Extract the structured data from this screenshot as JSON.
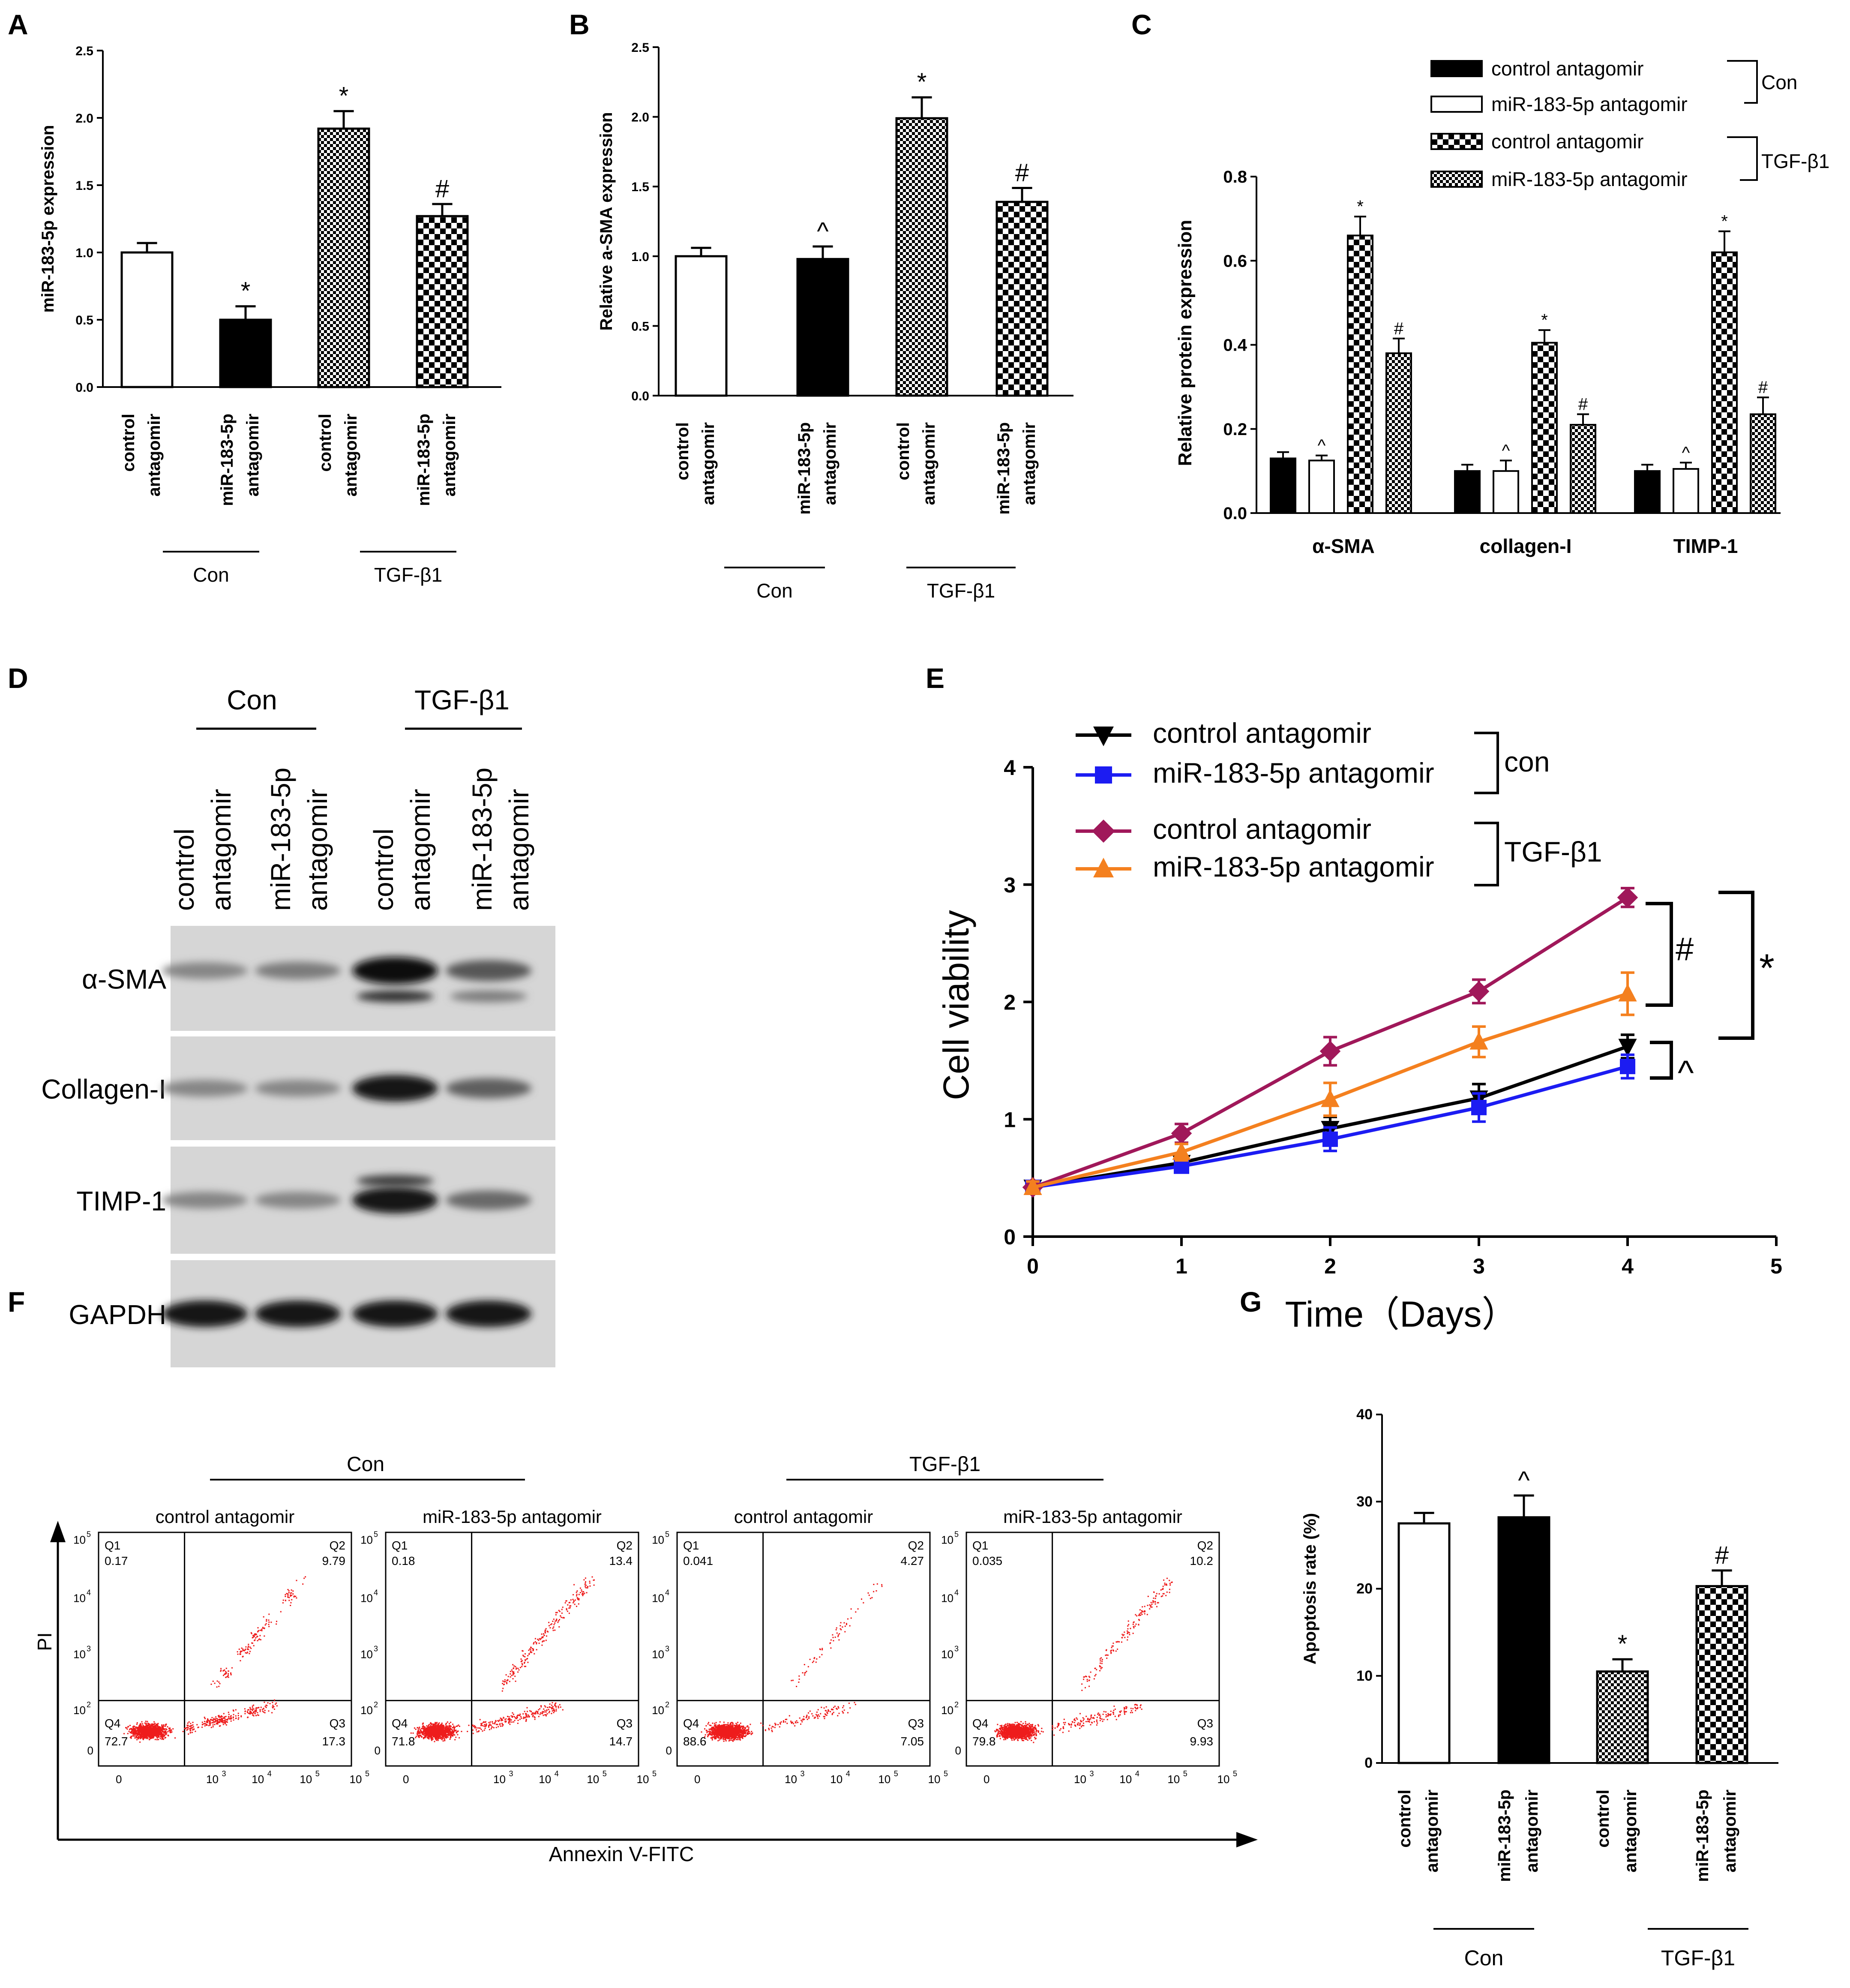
{
  "figure": {
    "panel_letters": {
      "A": "A",
      "B": "B",
      "C": "C",
      "D": "D",
      "E": "E",
      "F": "F",
      "G": "G"
    },
    "group_labels": {
      "con": "Con",
      "tgf": "TGF-β1",
      "con_lower": "con"
    },
    "bar_labels": {
      "ctrl_1": "control",
      "ctrl_2": "antagomir",
      "mir_1": "miR-183-5p",
      "mir_2": "antagomir"
    },
    "colors": {
      "black": "#000000",
      "white": "#ffffff",
      "blue": "#1c1cf2",
      "purple": "#a0185a",
      "orange": "#f4801f",
      "red": "#ee1c1c"
    }
  },
  "chart_data": [
    {
      "panel": "A",
      "type": "bar",
      "ylabel": "miR-183-5p expression",
      "ylim": [
        0,
        2.5
      ],
      "yticks": [
        "0.0",
        "0.5",
        "1.0",
        "1.5",
        "2.0",
        "2.5"
      ],
      "values": [
        1.0,
        0.5,
        1.92,
        1.27
      ],
      "errors": [
        0.07,
        0.1,
        0.13,
        0.09
      ],
      "annotations": [
        "",
        "*",
        "*",
        "#"
      ],
      "fills": [
        "white",
        "black",
        "dense-check",
        "coarse-check"
      ]
    },
    {
      "panel": "B",
      "type": "bar",
      "ylabel": "Relative a-SMA expression",
      "ylim": [
        0,
        2.5
      ],
      "yticks": [
        "0.0",
        "0.5",
        "1.0",
        "1.5",
        "2.0",
        "2.5"
      ],
      "values": [
        1.0,
        0.98,
        1.99,
        1.39
      ],
      "errors": [
        0.06,
        0.09,
        0.15,
        0.1
      ],
      "annotations": [
        "",
        "^",
        "*",
        "#"
      ],
      "fills": [
        "white",
        "black",
        "dense-check",
        "coarse-check"
      ]
    },
    {
      "panel": "C",
      "type": "bar",
      "ylabel": "Relative protein expression",
      "ylim": [
        0,
        0.8
      ],
      "yticks": [
        "0.0",
        "0.2",
        "0.4",
        "0.6",
        "0.8"
      ],
      "categories": [
        "α-SMA",
        "collagen-I",
        "TIMP-1"
      ],
      "series": [
        {
          "name": "control antagomir",
          "group": "Con",
          "fill": "black",
          "values": [
            0.13,
            0.1,
            0.1
          ],
          "errors": [
            0.015,
            0.015,
            0.015
          ],
          "annotations": [
            "",
            "",
            ""
          ]
        },
        {
          "name": "miR-183-5p antagomir",
          "group": "Con",
          "fill": "white",
          "values": [
            0.125,
            0.1,
            0.105
          ],
          "errors": [
            0.012,
            0.025,
            0.015
          ],
          "annotations": [
            "^",
            "^",
            "^"
          ]
        },
        {
          "name": "control antagomir",
          "group": "TGF-β1",
          "fill": "coarse-check",
          "values": [
            0.66,
            0.405,
            0.62
          ],
          "errors": [
            0.045,
            0.03,
            0.05
          ],
          "annotations": [
            "*",
            "*",
            "*"
          ]
        },
        {
          "name": "miR-183-5p antagomir",
          "group": "TGF-β1",
          "fill": "dense-check",
          "values": [
            0.38,
            0.21,
            0.235
          ],
          "errors": [
            0.035,
            0.025,
            0.04
          ],
          "annotations": [
            "#",
            "#",
            "#"
          ]
        }
      ],
      "legend_groups": [
        "Con",
        "TGF-β1"
      ]
    },
    {
      "panel": "D",
      "type": "table",
      "rows": [
        "α-SMA",
        "Collagen-I",
        "TIMP-1",
        "GAPDH"
      ],
      "lanes": [
        "control antagomir (Con)",
        "miR-183-5p antagomir (Con)",
        "control antagomir (TGF-β1)",
        "miR-183-5p antagomir (TGF-β1)"
      ],
      "band_intensity": [
        [
          0.35,
          0.4,
          1.0,
          0.6
        ],
        [
          0.35,
          0.35,
          0.95,
          0.55
        ],
        [
          0.35,
          0.35,
          0.95,
          0.5
        ],
        [
          0.95,
          0.95,
          0.95,
          0.95
        ]
      ]
    },
    {
      "panel": "E",
      "type": "line",
      "xlabel": "Time（Days）",
      "ylabel": "Cell viability",
      "xlim": [
        0,
        5
      ],
      "ylim": [
        0,
        4
      ],
      "xticks": [
        "0",
        "1",
        "2",
        "3",
        "4",
        "5"
      ],
      "yticks": [
        "0",
        "1",
        "2",
        "3",
        "4"
      ],
      "x": [
        0,
        1,
        2,
        3,
        4
      ],
      "series": [
        {
          "name": "control antagomir",
          "group": "con",
          "color": "black",
          "marker": "triangle-down",
          "values": [
            0.42,
            0.63,
            0.92,
            1.18,
            1.62
          ],
          "errors": [
            0.05,
            0.05,
            0.1,
            0.12,
            0.1
          ]
        },
        {
          "name": "miR-183-5p antagomir",
          "group": "con",
          "color": "blue",
          "marker": "square",
          "values": [
            0.42,
            0.6,
            0.83,
            1.1,
            1.45
          ],
          "errors": [
            0.05,
            0.05,
            0.1,
            0.12,
            0.1
          ]
        },
        {
          "name": "control antagomir",
          "group": "TGF-β1",
          "color": "purple",
          "marker": "diamond",
          "values": [
            0.42,
            0.88,
            1.58,
            2.09,
            2.89
          ],
          "errors": [
            0.05,
            0.08,
            0.12,
            0.1,
            0.08
          ]
        },
        {
          "name": "miR-183-5p antagomir",
          "group": "TGF-β1",
          "color": "orange",
          "marker": "triangle-up",
          "values": [
            0.42,
            0.72,
            1.17,
            1.66,
            2.07
          ],
          "errors": [
            0.05,
            0.07,
            0.14,
            0.13,
            0.18
          ]
        }
      ],
      "legend_groups": [
        "con",
        "TGF-β1"
      ],
      "significance": [
        "#",
        "*",
        "^"
      ]
    },
    {
      "panel": "F",
      "type": "scatter",
      "xlabel": "Annexin V-FITC",
      "ylabel": "PI",
      "axis_ticks": [
        "0",
        "10",
        "10",
        "10",
        "10"
      ],
      "tick_exponents": [
        "2",
        "3",
        "4",
        "5"
      ],
      "quadrant_names": [
        "Q1",
        "Q2",
        "Q3",
        "Q4"
      ],
      "plots": [
        {
          "title": "control antagomir",
          "group": "Con",
          "Q1": "0.17",
          "Q2": "9.79",
          "Q3": "17.3",
          "Q4": "72.7"
        },
        {
          "title": "miR-183-5p antagomir",
          "group": "Con",
          "Q1": "0.18",
          "Q2": "13.4",
          "Q3": "14.7",
          "Q4": "71.8"
        },
        {
          "title": "control antagomir",
          "group": "TGF-β1",
          "Q1": "0.041",
          "Q2": "4.27",
          "Q3": "7.05",
          "Q4": "88.6"
        },
        {
          "title": "miR-183-5p antagomir",
          "group": "TGF-β1",
          "Q1": "0.035",
          "Q2": "10.2",
          "Q3": "9.93",
          "Q4": "79.8"
        }
      ]
    },
    {
      "panel": "G",
      "type": "bar",
      "ylabel": "Apoptosis rate (%)",
      "ylim": [
        0,
        40
      ],
      "yticks": [
        "0",
        "10",
        "20",
        "30",
        "40"
      ],
      "values": [
        27.5,
        28.2,
        10.5,
        20.3
      ],
      "errors": [
        1.2,
        2.5,
        1.4,
        1.8
      ],
      "annotations": [
        "",
        "^",
        "*",
        "#"
      ],
      "fills": [
        "white",
        "black",
        "dense-check",
        "coarse-check"
      ]
    }
  ]
}
